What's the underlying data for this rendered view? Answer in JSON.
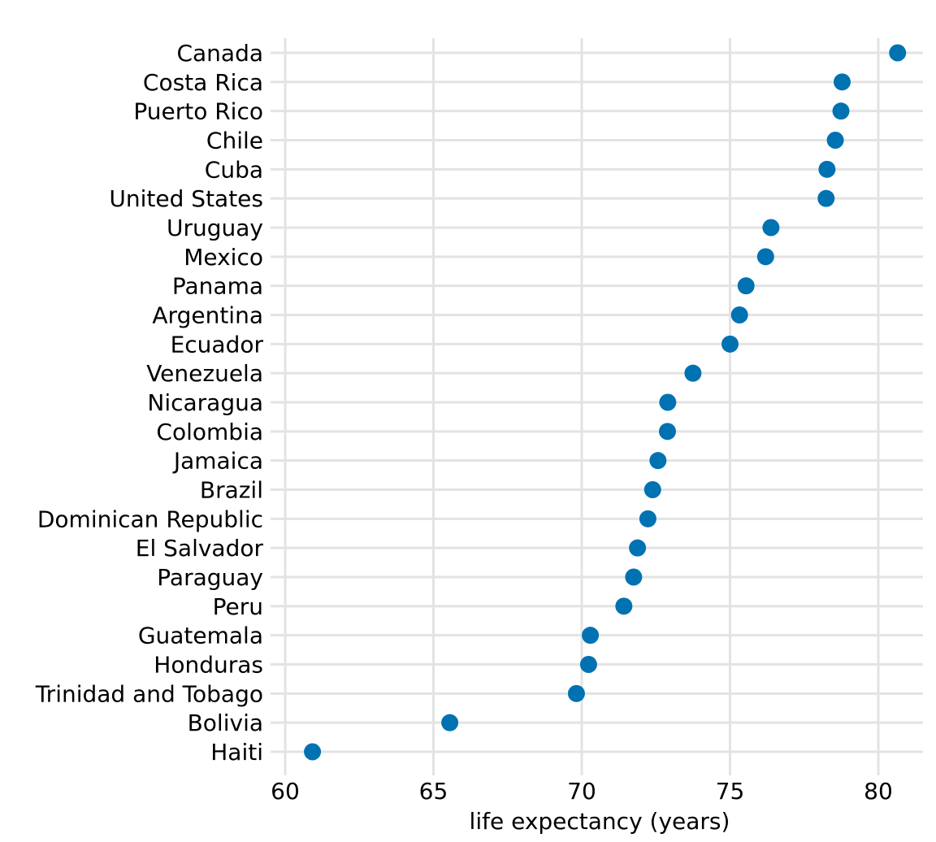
{
  "chart_data": {
    "type": "scatter",
    "title": "",
    "xlabel": "life expectancy (years)",
    "ylabel": "",
    "xlim": [
      60,
      81.5
    ],
    "x_ticks": [
      60,
      65,
      70,
      75,
      80
    ],
    "grid": true,
    "legend": "none",
    "point_color": "#0072B2",
    "categories": [
      "Canada",
      "Costa Rica",
      "Puerto Rico",
      "Chile",
      "Cuba",
      "United States",
      "Uruguay",
      "Mexico",
      "Panama",
      "Argentina",
      "Ecuador",
      "Venezuela",
      "Nicaragua",
      "Colombia",
      "Jamaica",
      "Brazil",
      "Dominican Republic",
      "El Salvador",
      "Paraguay",
      "Peru",
      "Guatemala",
      "Honduras",
      "Trinidad and Tobago",
      "Bolivia",
      "Haiti"
    ],
    "values": [
      80.65,
      78.78,
      78.74,
      78.55,
      78.27,
      78.24,
      76.38,
      76.2,
      75.54,
      75.32,
      75.0,
      73.75,
      72.9,
      72.89,
      72.57,
      72.39,
      72.23,
      71.88,
      71.75,
      71.42,
      70.29,
      70.23,
      69.82,
      65.55,
      60.92
    ]
  }
}
